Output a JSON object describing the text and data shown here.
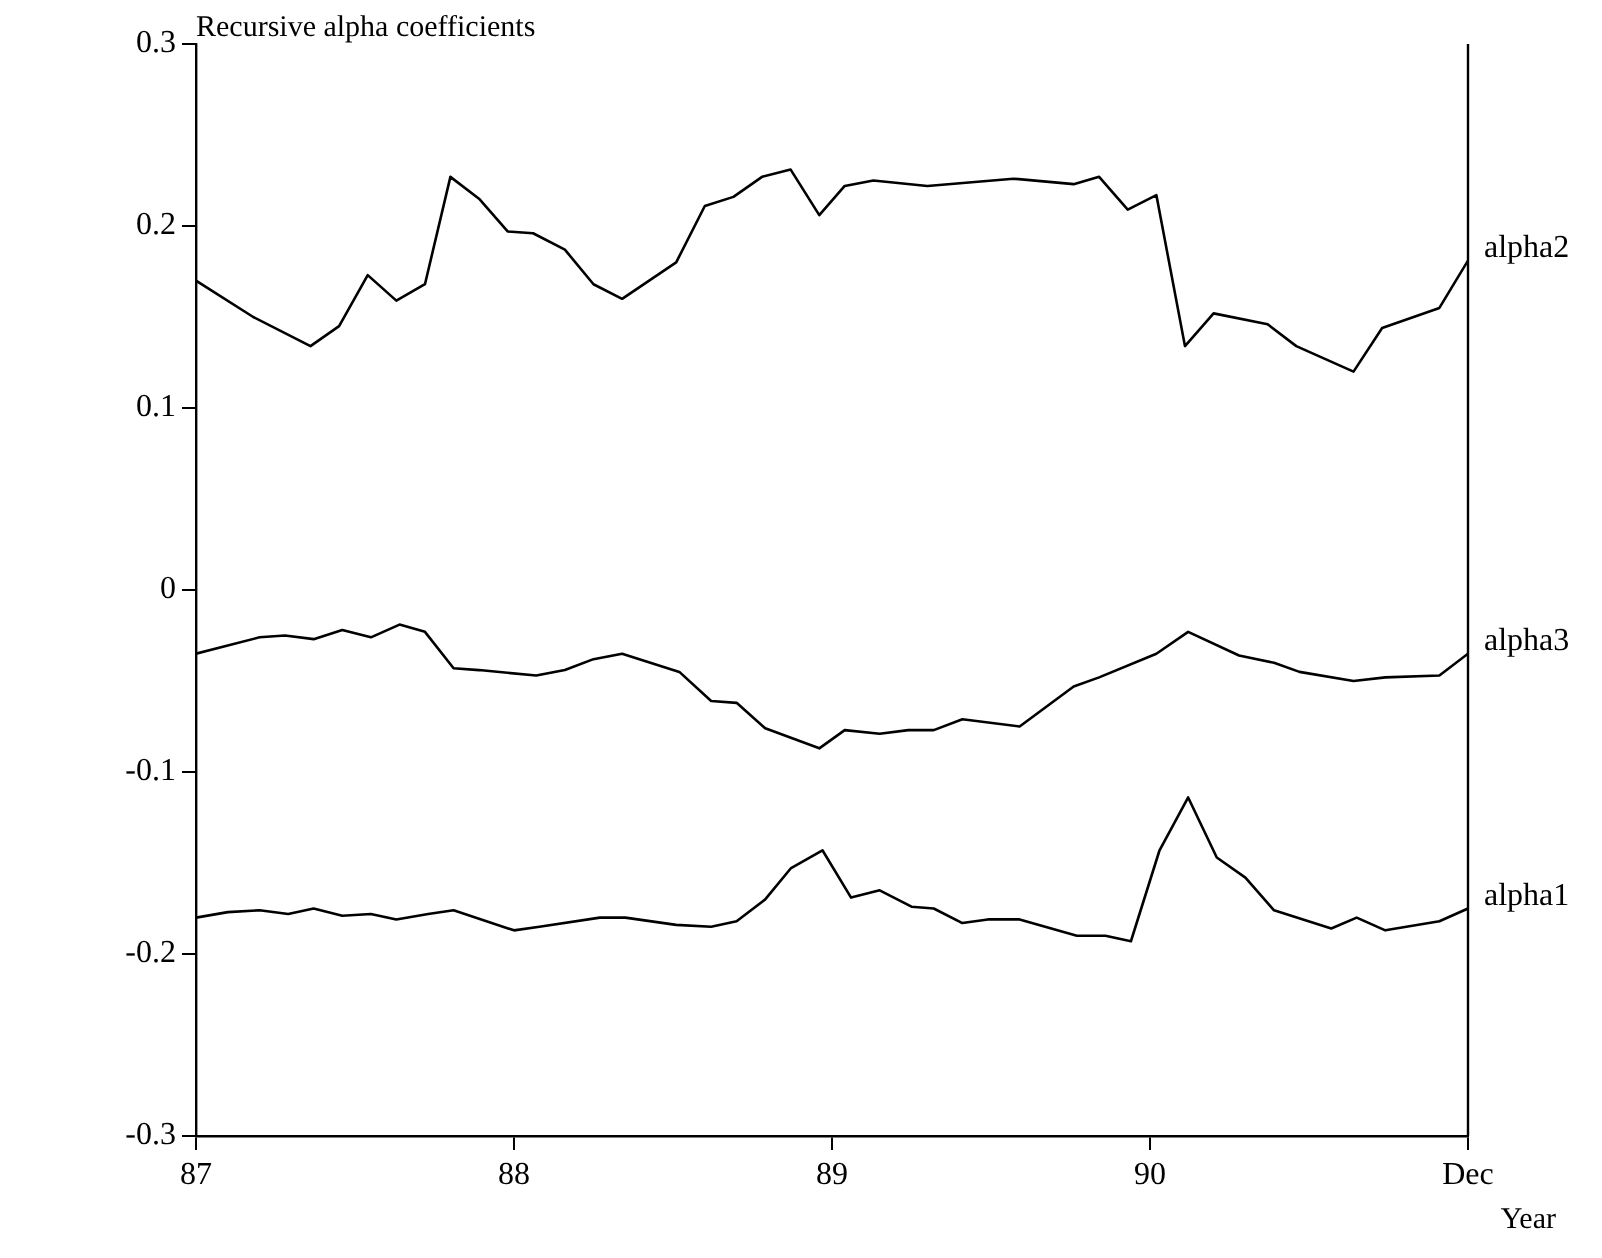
{
  "chart_data": {
    "type": "line",
    "title": "Recursive alpha coefficients",
    "xlabel": "Year",
    "xlim": [
      87,
      91
    ],
    "xticks": [
      87,
      88,
      89,
      90,
      {
        "value": 91,
        "label": "Dec"
      }
    ],
    "ylim": [
      -0.3,
      0.3
    ],
    "yticks": [
      {
        "value": -0.3,
        "label": "-0.3"
      },
      {
        "value": -0.2,
        "label": "-0.2"
      },
      {
        "value": -0.1,
        "label": "-0.1"
      },
      0,
      0.1,
      0.2,
      0.3
    ],
    "grid": false,
    "legend": false,
    "marker": "none",
    "line_style": "solid",
    "series": [
      {
        "name": "alpha2",
        "color": "#000000",
        "x": [
          87.0,
          87.18,
          87.36,
          87.45,
          87.54,
          87.63,
          87.72,
          87.8,
          87.89,
          87.98,
          88.06,
          88.16,
          88.25,
          88.34,
          88.51,
          88.6,
          88.69,
          88.78,
          88.87,
          88.96,
          89.04,
          89.13,
          89.3,
          89.57,
          89.76,
          89.84,
          89.93,
          90.02,
          90.11,
          90.2,
          90.37,
          90.46,
          90.64,
          90.73,
          90.91,
          91.0
        ],
        "values": [
          0.17,
          0.15,
          0.134,
          0.145,
          0.173,
          0.159,
          0.168,
          0.227,
          0.215,
          0.197,
          0.196,
          0.187,
          0.168,
          0.16,
          0.18,
          0.211,
          0.216,
          0.227,
          0.231,
          0.206,
          0.222,
          0.225,
          0.222,
          0.226,
          0.223,
          0.227,
          0.209,
          0.217,
          0.134,
          0.152,
          0.146,
          0.134,
          0.12,
          0.144,
          0.155,
          0.181
        ]
      },
      {
        "name": "alpha3",
        "color": "#000000",
        "x": [
          87.0,
          87.2,
          87.28,
          87.37,
          87.46,
          87.55,
          87.64,
          87.72,
          87.81,
          87.89,
          88.07,
          88.16,
          88.25,
          88.34,
          88.52,
          88.62,
          88.7,
          88.79,
          88.96,
          89.04,
          89.15,
          89.24,
          89.32,
          89.41,
          89.59,
          89.76,
          89.84,
          90.02,
          90.12,
          90.28,
          90.39,
          90.47,
          90.64,
          90.74,
          90.91,
          91.0
        ],
        "values": [
          -0.035,
          -0.026,
          -0.025,
          -0.027,
          -0.022,
          -0.026,
          -0.019,
          -0.023,
          -0.043,
          -0.044,
          -0.047,
          -0.044,
          -0.038,
          -0.035,
          -0.045,
          -0.061,
          -0.062,
          -0.076,
          -0.087,
          -0.077,
          -0.079,
          -0.077,
          -0.077,
          -0.071,
          -0.075,
          -0.053,
          -0.048,
          -0.035,
          -0.023,
          -0.036,
          -0.04,
          -0.045,
          -0.05,
          -0.048,
          -0.047,
          -0.035
        ]
      },
      {
        "name": "alpha1",
        "color": "#000000",
        "x": [
          87.0,
          87.1,
          87.2,
          87.29,
          87.37,
          87.46,
          87.55,
          87.63,
          87.73,
          87.81,
          88.0,
          88.08,
          88.27,
          88.35,
          88.51,
          88.62,
          88.7,
          88.79,
          88.87,
          88.97,
          89.06,
          89.15,
          89.25,
          89.32,
          89.41,
          89.49,
          89.59,
          89.77,
          89.86,
          89.94,
          90.03,
          90.12,
          90.21,
          90.3,
          90.39,
          90.57,
          90.65,
          90.74,
          90.91,
          91.0
        ],
        "values": [
          -0.18,
          -0.177,
          -0.176,
          -0.178,
          -0.175,
          -0.179,
          -0.178,
          -0.181,
          -0.178,
          -0.176,
          -0.187,
          -0.185,
          -0.18,
          -0.18,
          -0.184,
          -0.185,
          -0.182,
          -0.17,
          -0.153,
          -0.143,
          -0.169,
          -0.165,
          -0.174,
          -0.175,
          -0.183,
          -0.181,
          -0.181,
          -0.19,
          -0.19,
          -0.193,
          -0.143,
          -0.114,
          -0.147,
          -0.158,
          -0.176,
          -0.186,
          -0.18,
          -0.187,
          -0.182,
          -0.175
        ]
      }
    ]
  }
}
